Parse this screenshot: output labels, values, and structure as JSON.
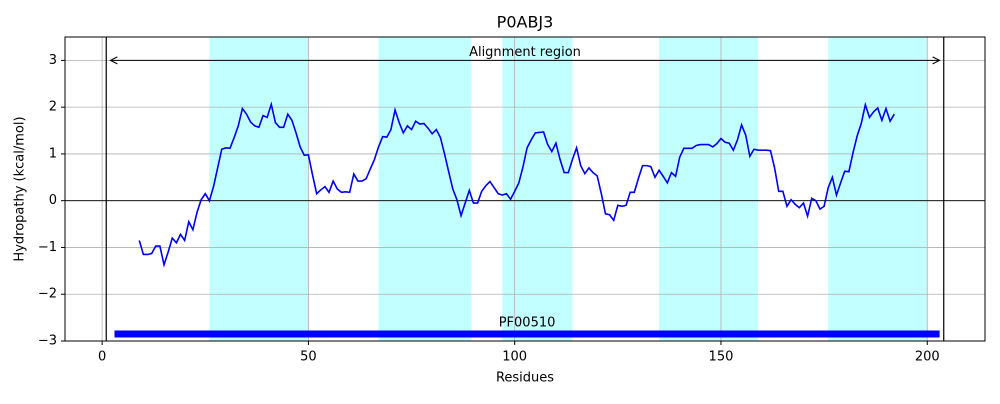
{
  "chart_data": {
    "type": "line",
    "title": "P0ABJ3",
    "x_label": "Residues",
    "y_label": "Hydropathy (kcal/mol)",
    "xlim": [
      -9,
      214
    ],
    "ylim": [
      -3,
      3.5
    ],
    "xticks": [
      0,
      50,
      100,
      150,
      200
    ],
    "yticks": [
      {
        "value": -3,
        "label": "−3"
      },
      {
        "value": -2,
        "label": "−2"
      },
      {
        "value": -1,
        "label": "−1"
      },
      0,
      1,
      2,
      3
    ],
    "grid": true,
    "color": "#0000ee",
    "x": [
      9,
      10,
      11,
      12,
      13,
      14,
      15,
      16,
      17,
      18,
      19,
      20,
      21,
      22,
      23,
      24,
      25,
      26,
      27,
      28,
      29,
      30,
      31,
      32,
      33,
      34,
      35,
      36,
      37,
      38,
      39,
      40,
      41,
      42,
      43,
      44,
      45,
      46,
      47,
      48,
      49,
      50,
      51,
      52,
      53,
      54,
      55,
      56,
      57,
      58,
      59,
      60,
      61,
      62,
      63,
      64,
      65,
      66,
      67,
      68,
      69,
      70,
      71,
      72,
      73,
      74,
      75,
      76,
      77,
      78,
      79,
      80,
      81,
      82,
      83,
      84,
      85,
      86,
      87,
      88,
      89,
      90,
      91,
      92,
      93,
      94,
      95,
      96,
      97,
      98,
      99,
      100,
      101,
      102,
      103,
      104,
      105,
      106,
      107,
      108,
      109,
      110,
      111,
      112,
      113,
      114,
      115,
      116,
      117,
      118,
      119,
      120,
      121,
      122,
      123,
      124,
      125,
      126,
      127,
      128,
      129,
      130,
      131,
      132,
      133,
      134,
      135,
      136,
      137,
      138,
      139,
      140,
      141,
      142,
      143,
      144,
      145,
      146,
      147,
      148,
      149,
      150,
      151,
      152,
      153,
      154,
      155,
      156,
      157,
      158,
      159,
      160,
      161,
      162,
      163,
      164,
      165,
      166,
      167,
      168,
      169,
      170,
      171,
      172,
      173,
      174,
      175,
      176,
      177,
      178,
      179,
      180,
      181,
      182,
      183,
      184,
      185,
      186,
      187,
      188,
      189,
      190,
      191,
      192
    ],
    "values": [
      -0.85,
      -1.15,
      -1.15,
      -1.13,
      -0.97,
      -0.97,
      -1.37,
      -1.1,
      -0.8,
      -0.9,
      -0.72,
      -0.85,
      -0.45,
      -0.62,
      -0.25,
      0.02,
      0.15,
      0.0,
      0.3,
      0.7,
      1.1,
      1.13,
      1.12,
      1.35,
      1.6,
      1.97,
      1.85,
      1.68,
      1.6,
      1.57,
      1.82,
      1.78,
      2.06,
      1.67,
      1.57,
      1.57,
      1.85,
      1.72,
      1.45,
      1.15,
      0.97,
      0.98,
      0.55,
      0.15,
      0.23,
      0.3,
      0.18,
      0.42,
      0.25,
      0.18,
      0.19,
      0.18,
      0.57,
      0.42,
      0.42,
      0.47,
      0.68,
      0.88,
      1.15,
      1.37,
      1.36,
      1.52,
      1.94,
      1.67,
      1.45,
      1.6,
      1.52,
      1.7,
      1.64,
      1.65,
      1.55,
      1.43,
      1.52,
      1.35,
      1.0,
      0.62,
      0.25,
      0.02,
      -0.32,
      -0.05,
      0.22,
      -0.05,
      -0.05,
      0.2,
      0.32,
      0.41,
      0.28,
      0.15,
      0.12,
      0.15,
      0.03,
      0.2,
      0.38,
      0.72,
      1.13,
      1.3,
      1.45,
      1.46,
      1.47,
      1.2,
      1.05,
      1.23,
      0.88,
      0.6,
      0.6,
      0.88,
      1.13,
      0.75,
      0.58,
      0.7,
      0.6,
      0.53,
      0.15,
      -0.28,
      -0.3,
      -0.42,
      -0.1,
      -0.12,
      -0.1,
      0.18,
      0.18,
      0.48,
      0.75,
      0.75,
      0.73,
      0.5,
      0.65,
      0.52,
      0.38,
      0.6,
      0.52,
      0.93,
      1.12,
      1.12,
      1.12,
      1.18,
      1.2,
      1.2,
      1.2,
      1.15,
      1.22,
      1.33,
      1.25,
      1.23,
      1.08,
      1.3,
      1.62,
      1.4,
      0.95,
      1.1,
      1.08,
      1.08,
      1.08,
      1.07,
      0.7,
      0.2,
      0.2,
      -0.12,
      0.02,
      -0.08,
      -0.15,
      -0.05,
      -0.33,
      0.05,
      0.0,
      -0.18,
      -0.12,
      0.28,
      0.5,
      0.12,
      0.38,
      0.63,
      0.62,
      1.02,
      1.38,
      1.65,
      2.05,
      1.78,
      1.9,
      1.98,
      1.72,
      1.97,
      1.7,
      1.85
    ],
    "shaded_regions": [
      {
        "start": 26,
        "end": 50
      },
      {
        "start": 67,
        "end": 89.5
      },
      {
        "start": 97,
        "end": 114
      },
      {
        "start": 135,
        "end": 159
      },
      {
        "start": 176,
        "end": 200
      }
    ],
    "shade_color": "#c2ffff",
    "vlines": [
      1,
      204
    ],
    "annotation": {
      "text": "Alignment region",
      "x": [
        2,
        203
      ],
      "y": 3
    },
    "domains": [
      {
        "label": "PF00510",
        "start": 3,
        "end": 203,
        "y": -2.85,
        "color": "#0000ff"
      }
    ]
  }
}
